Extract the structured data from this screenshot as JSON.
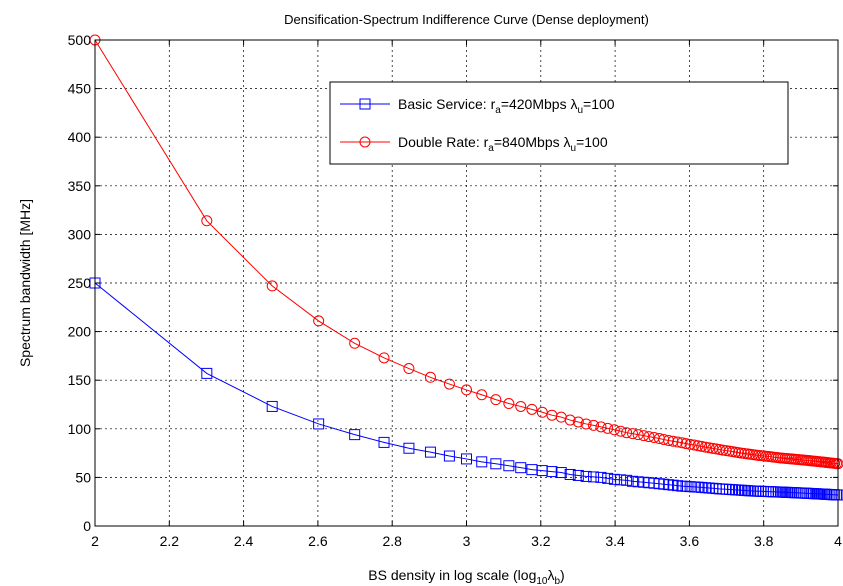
{
  "chart_data": {
    "type": "line",
    "title": "Densification-Spectrum Indifference Curve (Dense deployment)",
    "xlabel": "BS density in log scale (log10λb)",
    "ylabel": "Spectrum bandwidth [MHz]",
    "xlim": [
      2,
      4
    ],
    "ylim": [
      0,
      500
    ],
    "xticks": [
      2,
      2.2,
      2.4,
      2.6,
      2.8,
      3,
      3.2,
      3.4,
      3.6,
      3.8,
      4
    ],
    "xtick_labels": [
      "2",
      "2.2",
      "2.4",
      "2.6",
      "2.8",
      "3",
      "3.2",
      "3.4",
      "3.6",
      "3.8",
      "4"
    ],
    "yticks": [
      0,
      50,
      100,
      150,
      200,
      250,
      300,
      350,
      400,
      450,
      500
    ],
    "ytick_labels": [
      "0",
      "50",
      "100",
      "150",
      "200",
      "250",
      "300",
      "350",
      "400",
      "450",
      "500"
    ],
    "grid": true,
    "legend_position": "top-right",
    "series": [
      {
        "name": "Basic Service: ra=420Mbps λu=100",
        "legend_parts": [
          "Basic Service: r",
          "a",
          "=420Mbps λ",
          "u",
          "=100"
        ],
        "color": "#0000ff",
        "marker": "square",
        "x": [
          2,
          2.301,
          2.477,
          2.602,
          2.699,
          2.778,
          2.845,
          2.903,
          2.954,
          3,
          3.041,
          3.079,
          3.114,
          3.146,
          3.176,
          3.204,
          3.23,
          3.255,
          3.279,
          3.301,
          3.322,
          3.342,
          3.362,
          3.38,
          3.398,
          3.415,
          3.431,
          3.447,
          3.462,
          3.477,
          3.491,
          3.505,
          3.519,
          3.531,
          3.544,
          3.556,
          3.568,
          3.58,
          3.591,
          3.602,
          3.613,
          3.623,
          3.633,
          3.643,
          3.653,
          3.663,
          3.672,
          3.681,
          3.69,
          3.699,
          3.708,
          3.716,
          3.724,
          3.732,
          3.74,
          3.748,
          3.756,
          3.763,
          3.771,
          3.778,
          3.785,
          3.792,
          3.799,
          3.806,
          3.813,
          3.82,
          3.826,
          3.833,
          3.839,
          3.845,
          3.851,
          3.857,
          3.863,
          3.869,
          3.875,
          3.881,
          3.886,
          3.892,
          3.898,
          3.903,
          3.908,
          3.914,
          3.919,
          3.924,
          3.929,
          3.934,
          3.94,
          3.944,
          3.949,
          3.954,
          3.959,
          3.964,
          3.968,
          3.973,
          3.978,
          3.982,
          3.987,
          3.991,
          3.996,
          4
        ],
        "y": [
          250,
          157,
          123,
          105,
          94,
          86,
          80,
          76,
          72,
          69,
          66,
          64,
          62,
          60,
          58,
          57,
          56,
          55,
          53,
          52,
          51,
          50.5,
          50,
          49,
          48,
          47.5,
          47,
          46,
          45.5,
          45,
          44.5,
          44,
          43.5,
          43,
          42.5,
          42,
          41.5,
          41,
          40.8,
          40.5,
          40.2,
          40,
          39.7,
          39.4,
          39.1,
          38.8,
          38.5,
          38.2,
          38,
          37.8,
          37.6,
          37.4,
          37.2,
          37,
          36.8,
          36.6,
          36.4,
          36.2,
          36,
          35.9,
          35.8,
          35.7,
          35.6,
          35.5,
          35.4,
          35.3,
          35.2,
          35.1,
          35,
          34.9,
          34.8,
          34.7,
          34.6,
          34.5,
          34.4,
          34.3,
          34.2,
          34.1,
          34,
          33.9,
          33.8,
          33.7,
          33.6,
          33.5,
          33.4,
          33.3,
          33.2,
          33.1,
          33,
          32.9,
          32.8,
          32.7,
          32.6,
          32.5,
          32.4,
          32.3,
          32.2,
          32.1,
          32,
          31.9
        ]
      },
      {
        "name": "Double Rate: ra=840Mbps λu=100",
        "legend_parts": [
          "Double Rate: r",
          "a",
          "=840Mbps λ",
          "u",
          "=100"
        ],
        "color": "#ff0000",
        "marker": "circle",
        "x": [
          2,
          2.301,
          2.477,
          2.602,
          2.699,
          2.778,
          2.845,
          2.903,
          2.954,
          3,
          3.041,
          3.079,
          3.114,
          3.146,
          3.176,
          3.204,
          3.23,
          3.255,
          3.279,
          3.301,
          3.322,
          3.342,
          3.362,
          3.38,
          3.398,
          3.415,
          3.431,
          3.447,
          3.462,
          3.477,
          3.491,
          3.505,
          3.519,
          3.531,
          3.544,
          3.556,
          3.568,
          3.58,
          3.591,
          3.602,
          3.613,
          3.623,
          3.633,
          3.643,
          3.653,
          3.663,
          3.672,
          3.681,
          3.69,
          3.699,
          3.708,
          3.716,
          3.724,
          3.732,
          3.74,
          3.748,
          3.756,
          3.763,
          3.771,
          3.778,
          3.785,
          3.792,
          3.799,
          3.806,
          3.813,
          3.82,
          3.826,
          3.833,
          3.839,
          3.845,
          3.851,
          3.857,
          3.863,
          3.869,
          3.875,
          3.881,
          3.886,
          3.892,
          3.898,
          3.903,
          3.908,
          3.914,
          3.919,
          3.924,
          3.929,
          3.934,
          3.94,
          3.944,
          3.949,
          3.954,
          3.959,
          3.964,
          3.968,
          3.973,
          3.978,
          3.982,
          3.987,
          3.991,
          3.996,
          4
        ],
        "y": [
          500,
          314,
          247,
          211,
          188,
          173,
          162,
          153,
          146,
          140,
          135,
          130,
          126,
          123,
          120,
          117,
          114,
          112,
          109,
          107,
          105,
          103.5,
          102,
          100.5,
          99,
          97.5,
          96,
          95,
          94,
          93,
          92,
          91,
          90,
          89,
          88,
          87.2,
          86.4,
          85.6,
          84.8,
          84,
          83.3,
          82.6,
          81.9,
          81.2,
          80.5,
          79.9,
          79.3,
          78.7,
          78.1,
          77.5,
          77,
          76.5,
          76,
          75.5,
          75,
          74.6,
          74.2,
          73.8,
          73.4,
          73,
          72.7,
          72.4,
          72.1,
          71.8,
          71.5,
          71.2,
          70.9,
          70.6,
          70.3,
          70,
          69.8,
          69.6,
          69.4,
          69.2,
          69,
          68.8,
          68.6,
          68.4,
          68.2,
          68,
          67.8,
          67.6,
          67.4,
          67.2,
          67,
          66.8,
          66.6,
          66.4,
          66.2,
          66,
          65.8,
          65.6,
          65.4,
          65.2,
          65,
          64.8,
          64.6,
          64.4,
          64.2,
          64
        ]
      }
    ]
  }
}
